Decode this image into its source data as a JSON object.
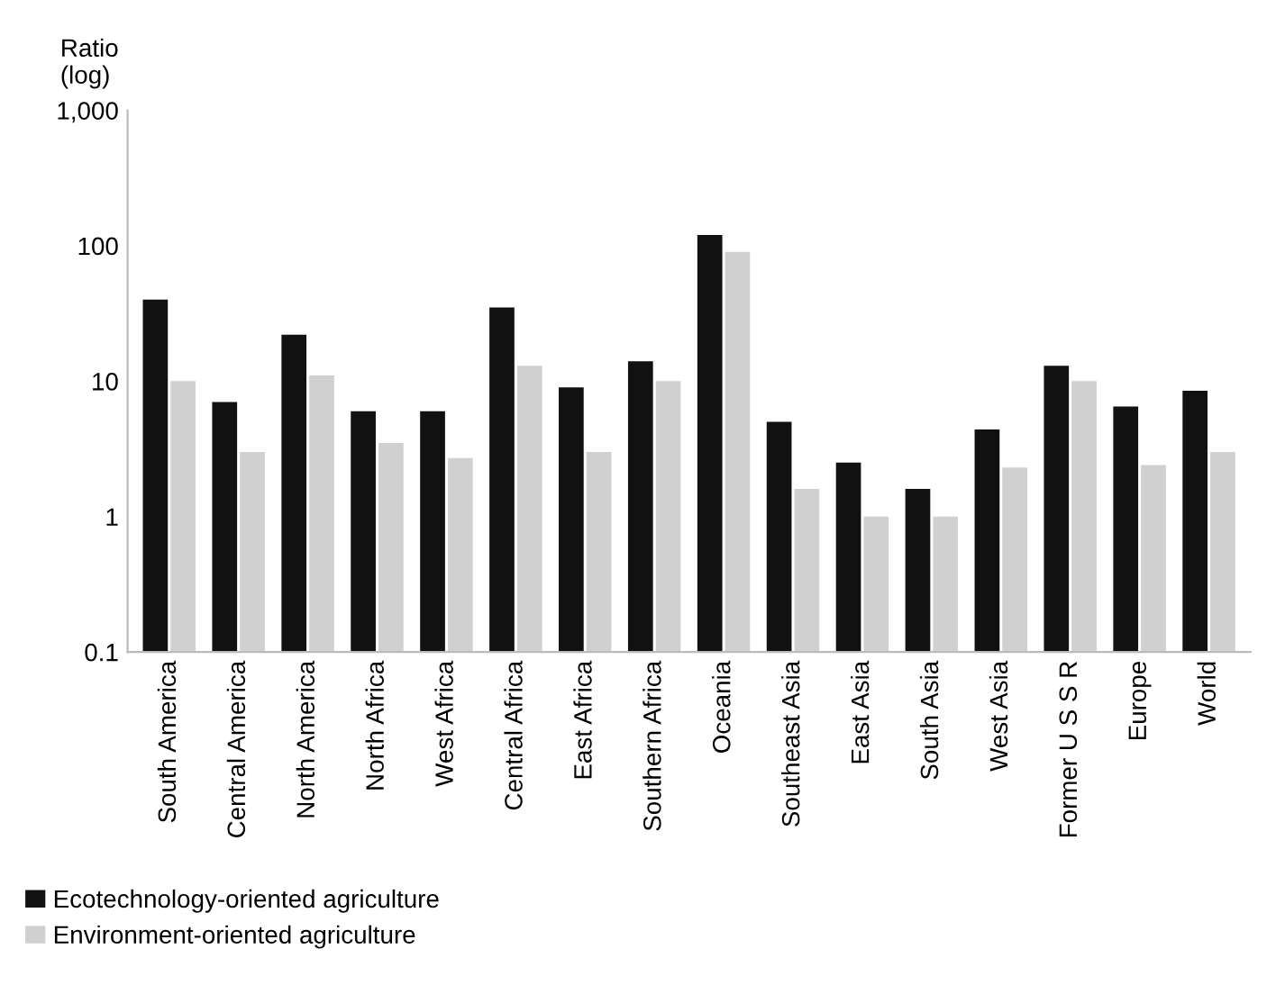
{
  "chart_data": {
    "type": "bar",
    "ylabel": "Ratio\n(log)",
    "log": true,
    "categories": [
      "South America",
      "Central America",
      "North America",
      "North Africa",
      "West Africa",
      "Central Africa",
      "East Africa",
      "Southern Africa",
      "Oceania",
      "Southeast Asia",
      "East Asia",
      "South Asia",
      "West Asia",
      "Former U S S R",
      "Europe",
      "World"
    ],
    "series": [
      {
        "name": "Ecotechnology-oriented agriculture",
        "color": "#111111",
        "values": [
          40,
          7,
          22,
          6,
          6,
          35,
          9,
          14,
          120,
          5,
          2.5,
          1.6,
          4.4,
          13,
          6.5,
          8.5
        ]
      },
      {
        "name": "Environment-oriented agriculture",
        "color": "#d0d0d0",
        "values": [
          10,
          3,
          11,
          3.5,
          2.7,
          13,
          3,
          10,
          90,
          1.6,
          1,
          1,
          2.3,
          10,
          2.4,
          3
        ]
      }
    ],
    "ylim": [
      0.1,
      1000
    ],
    "yticks": [
      {
        "value": 0.1,
        "label": "0.1"
      },
      1,
      10,
      100,
      {
        "value": 1000,
        "label": "1,000"
      }
    ],
    "grid": false,
    "legend": "bottom left"
  }
}
